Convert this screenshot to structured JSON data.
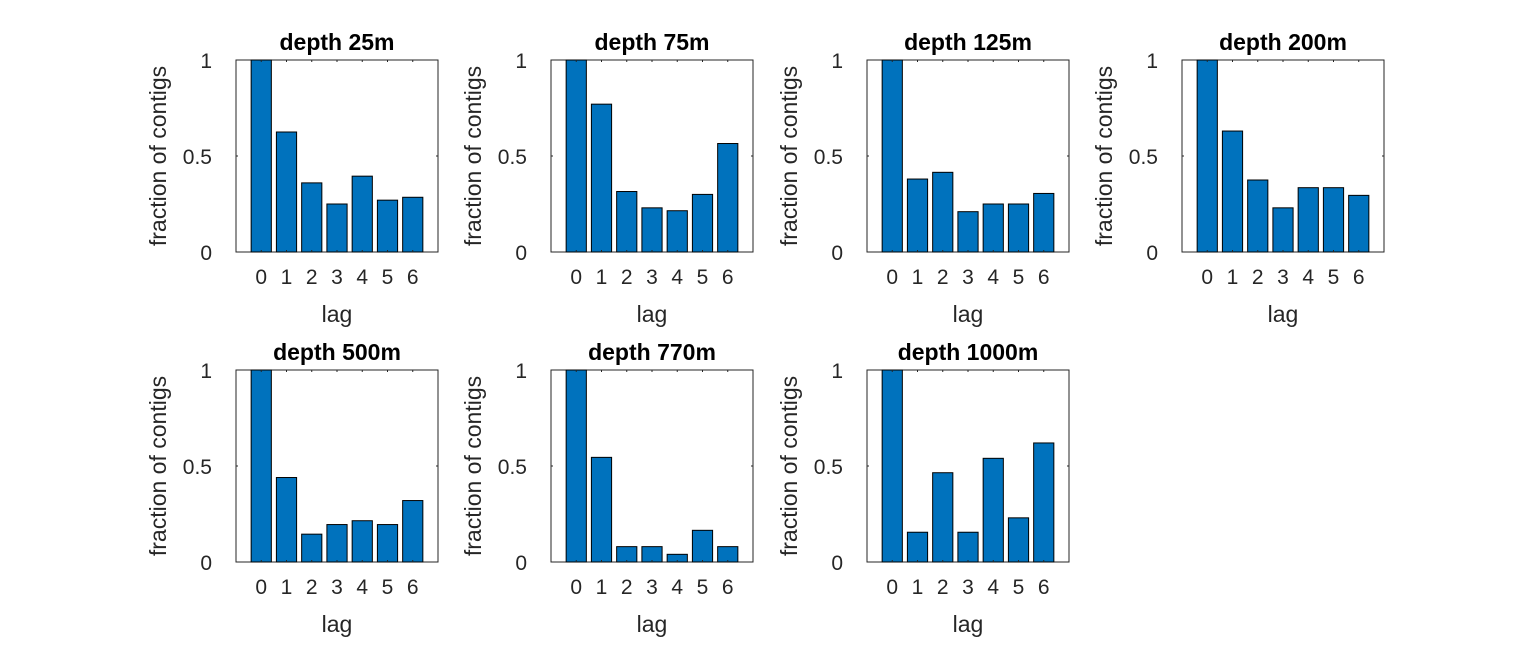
{
  "chart_data": [
    {
      "type": "bar",
      "title": "depth 25m",
      "xlabel": "lag",
      "ylabel": "fraction of contigs",
      "categories": [
        "0",
        "1",
        "2",
        "3",
        "4",
        "5",
        "6"
      ],
      "values": [
        1.0,
        0.625,
        0.36,
        0.25,
        0.395,
        0.27,
        0.285
      ],
      "ylim": [
        0,
        1
      ],
      "yticks": [
        "0",
        "0.5",
        "1"
      ],
      "grid": false,
      "color": "#0072bd"
    },
    {
      "type": "bar",
      "title": "depth 75m",
      "xlabel": "lag",
      "ylabel": "fraction of contigs",
      "categories": [
        "0",
        "1",
        "2",
        "3",
        "4",
        "5",
        "6"
      ],
      "values": [
        1.0,
        0.77,
        0.315,
        0.23,
        0.215,
        0.3,
        0.565
      ],
      "ylim": [
        0,
        1
      ],
      "yticks": [
        "0",
        "0.5",
        "1"
      ],
      "grid": false,
      "color": "#0072bd"
    },
    {
      "type": "bar",
      "title": "depth 125m",
      "xlabel": "lag",
      "ylabel": "fraction of contigs",
      "categories": [
        "0",
        "1",
        "2",
        "3",
        "4",
        "5",
        "6"
      ],
      "values": [
        1.0,
        0.38,
        0.415,
        0.21,
        0.25,
        0.25,
        0.305
      ],
      "ylim": [
        0,
        1
      ],
      "yticks": [
        "0",
        "0.5",
        "1"
      ],
      "grid": false,
      "color": "#0072bd"
    },
    {
      "type": "bar",
      "title": "depth 200m",
      "xlabel": "lag",
      "ylabel": "fraction of contigs",
      "categories": [
        "0",
        "1",
        "2",
        "3",
        "4",
        "5",
        "6"
      ],
      "values": [
        1.0,
        0.63,
        0.375,
        0.23,
        0.335,
        0.335,
        0.295
      ],
      "ylim": [
        0,
        1
      ],
      "yticks": [
        "0",
        "0.5",
        "1"
      ],
      "grid": false,
      "color": "#0072bd"
    },
    {
      "type": "bar",
      "title": "depth 500m",
      "xlabel": "lag",
      "ylabel": "fraction of contigs",
      "categories": [
        "0",
        "1",
        "2",
        "3",
        "4",
        "5",
        "6"
      ],
      "values": [
        1.0,
        0.44,
        0.145,
        0.195,
        0.215,
        0.195,
        0.32
      ],
      "ylim": [
        0,
        1
      ],
      "yticks": [
        "0",
        "0.5",
        "1"
      ],
      "grid": false,
      "color": "#0072bd"
    },
    {
      "type": "bar",
      "title": "depth 770m",
      "xlabel": "lag",
      "ylabel": "fraction of contigs",
      "categories": [
        "0",
        "1",
        "2",
        "3",
        "4",
        "5",
        "6"
      ],
      "values": [
        1.0,
        0.545,
        0.08,
        0.08,
        0.04,
        0.165,
        0.08
      ],
      "ylim": [
        0,
        1
      ],
      "yticks": [
        "0",
        "0.5",
        "1"
      ],
      "grid": false,
      "color": "#0072bd"
    },
    {
      "type": "bar",
      "title": "depth 1000m",
      "xlabel": "lag",
      "ylabel": "fraction of contigs",
      "categories": [
        "0",
        "1",
        "2",
        "3",
        "4",
        "5",
        "6"
      ],
      "values": [
        1.0,
        0.155,
        0.465,
        0.155,
        0.54,
        0.23,
        0.62
      ],
      "ylim": [
        0,
        1
      ],
      "yticks": [
        "0",
        "0.5",
        "1"
      ],
      "grid": false,
      "color": "#0072bd"
    }
  ]
}
